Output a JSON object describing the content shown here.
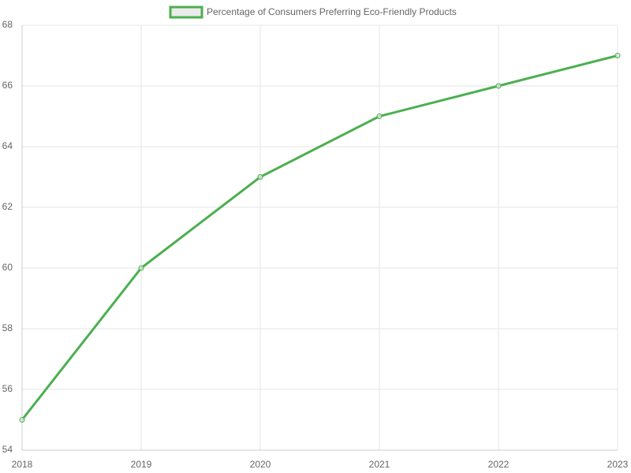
{
  "chart_data": {
    "type": "line",
    "categories": [
      "2018",
      "2019",
      "2020",
      "2021",
      "2022",
      "2023"
    ],
    "series": [
      {
        "name": "Percentage of Consumers Preferring Eco-Friendly Products",
        "color": "#4caf50",
        "values": [
          55,
          60,
          63,
          65,
          66,
          67
        ]
      }
    ],
    "ylim": [
      54,
      68
    ],
    "yticks": [
      54,
      56,
      58,
      60,
      62,
      64,
      66,
      68
    ],
    "grid": true,
    "legend": "top"
  }
}
